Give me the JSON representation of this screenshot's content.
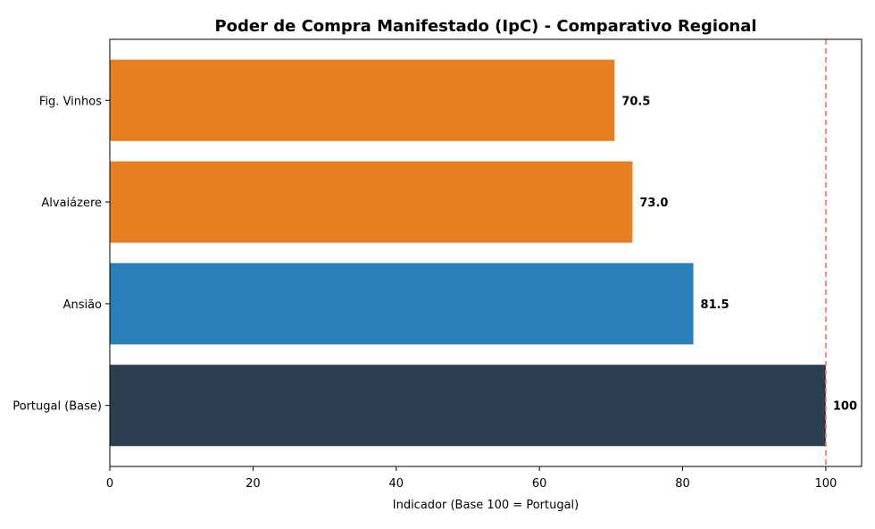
{
  "chart_data": {
    "type": "bar",
    "orientation": "horizontal",
    "title": "Poder de Compra Manifestado (IpC) - Comparativo Regional",
    "xlabel": "Indicador (Base 100 = Portugal)",
    "ylabel": "",
    "xlim": [
      0,
      105
    ],
    "xticks": [
      0,
      20,
      40,
      60,
      80,
      100
    ],
    "categories": [
      "Fig. Vinhos",
      "Alvaiázere",
      "Ansião",
      "Portugal (Base)"
    ],
    "values": [
      70.5,
      73.0,
      81.5,
      100
    ],
    "value_labels": [
      "70.5",
      "73.0",
      "81.5",
      "100"
    ],
    "bar_colors": [
      "#e67e22",
      "#e67e22",
      "#2980b9",
      "#2c3e50"
    ],
    "reference_line": {
      "value": 100,
      "color": "#ff6b6b",
      "style": "dashed"
    },
    "grid": false,
    "legend": "none"
  }
}
